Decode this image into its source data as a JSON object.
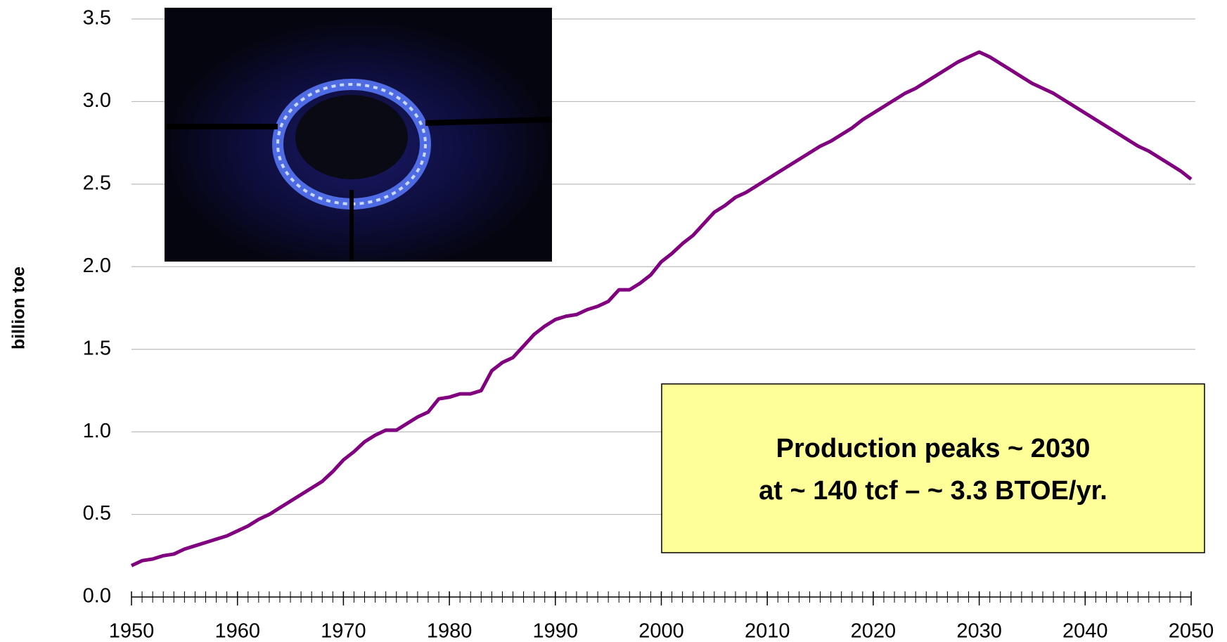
{
  "chart_data": {
    "type": "line",
    "y_label": "billion toe",
    "annotation": [
      "Production peaks ~ 2030",
      "at ~ 140 tcf – ~ 3.3 BTOE/yr."
    ],
    "x": [
      1950,
      1951,
      1952,
      1953,
      1954,
      1955,
      1956,
      1957,
      1958,
      1959,
      1960,
      1961,
      1962,
      1963,
      1964,
      1965,
      1966,
      1967,
      1968,
      1969,
      1970,
      1971,
      1972,
      1973,
      1974,
      1975,
      1976,
      1977,
      1978,
      1979,
      1980,
      1981,
      1982,
      1983,
      1984,
      1985,
      1986,
      1987,
      1988,
      1989,
      1990,
      1991,
      1992,
      1993,
      1994,
      1995,
      1996,
      1997,
      1998,
      1999,
      2000,
      2001,
      2002,
      2003,
      2004,
      2005,
      2006,
      2007,
      2008,
      2009,
      2010,
      2011,
      2012,
      2013,
      2014,
      2015,
      2016,
      2017,
      2018,
      2019,
      2020,
      2021,
      2022,
      2023,
      2024,
      2025,
      2026,
      2027,
      2028,
      2029,
      2030,
      2031,
      2032,
      2033,
      2034,
      2035,
      2036,
      2037,
      2038,
      2039,
      2040,
      2041,
      2042,
      2043,
      2044,
      2045,
      2046,
      2047,
      2048,
      2049,
      2050
    ],
    "series": [
      {
        "color": "#800080",
        "values": [
          0.19,
          0.22,
          0.23,
          0.25,
          0.26,
          0.29,
          0.31,
          0.33,
          0.35,
          0.37,
          0.4,
          0.43,
          0.47,
          0.5,
          0.54,
          0.58,
          0.62,
          0.66,
          0.7,
          0.76,
          0.83,
          0.88,
          0.94,
          0.98,
          1.01,
          1.01,
          1.05,
          1.09,
          1.12,
          1.2,
          1.21,
          1.23,
          1.23,
          1.25,
          1.37,
          1.42,
          1.45,
          1.52,
          1.59,
          1.64,
          1.68,
          1.7,
          1.71,
          1.74,
          1.76,
          1.79,
          1.86,
          1.86,
          1.9,
          1.95,
          2.03,
          2.08,
          2.14,
          2.19,
          2.26,
          2.33,
          2.37,
          2.42,
          2.45,
          2.49,
          2.53,
          2.57,
          2.61,
          2.65,
          2.69,
          2.73,
          2.76,
          2.8,
          2.84,
          2.89,
          2.93,
          2.97,
          3.01,
          3.05,
          3.08,
          3.12,
          3.16,
          3.2,
          3.24,
          3.27,
          3.3,
          3.27,
          3.23,
          3.19,
          3.15,
          3.11,
          3.08,
          3.05,
          3.01,
          2.97,
          2.93,
          2.89,
          2.85,
          2.81,
          2.77,
          2.73,
          2.7,
          2.66,
          2.62,
          2.58,
          2.53
        ]
      }
    ],
    "xlim": [
      1950,
      2050
    ],
    "xticks": [
      1950,
      1960,
      1970,
      1980,
      1990,
      2000,
      2010,
      2020,
      2030,
      2040,
      2050
    ],
    "ylim": [
      0,
      3.5
    ],
    "yticks": [
      {
        "value": 0,
        "label": "0.0"
      },
      0.5,
      {
        "value": 1,
        "label": "1.0"
      },
      1.5,
      {
        "value": 2,
        "label": "2.0"
      },
      2.5,
      {
        "value": 3,
        "label": "3.0"
      },
      3.5
    ],
    "grid": true
  }
}
